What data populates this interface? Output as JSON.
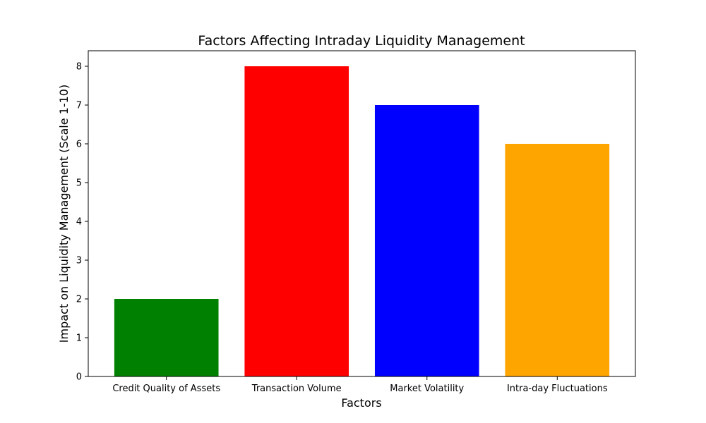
{
  "chart_data": {
    "type": "bar",
    "title": "Factors Affecting Intraday Liquidity Management",
    "xlabel": "Factors",
    "ylabel": "Impact on Liquidity Management (Scale 1-10)",
    "categories": [
      "Credit Quality of Assets",
      "Transaction Volume",
      "Market Volatility",
      "Intra-day Fluctuations"
    ],
    "values": [
      2,
      8,
      7,
      6
    ],
    "colors": [
      "#008000",
      "#ff0000",
      "#0000ff",
      "#ffa500"
    ],
    "ylim": [
      0,
      8.4
    ],
    "yticks": [
      0,
      1,
      2,
      3,
      4,
      5,
      6,
      7,
      8
    ],
    "grid": false,
    "legend": "none"
  }
}
